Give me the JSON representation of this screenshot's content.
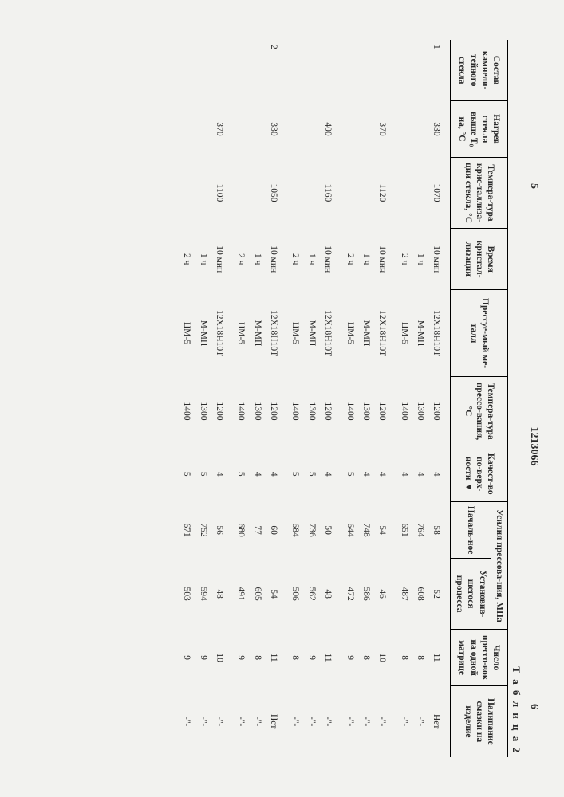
{
  "docNumber": "1213066",
  "leftPageMark": "5",
  "rightPageMark": "6",
  "tableLabel": "Т а б л и ц а  2",
  "headers": {
    "c1": "Состав камнели-тейного стекла",
    "c2": "Нагрев стекла выше Т₀ на, °С",
    "c3": "Темпера-тура крис-таллиза-ции стекла, °С",
    "c4": "Время кристал-лизации",
    "c5": "Прессуе-мый ме-талл",
    "c6": "Темпера-тура прессо-вания, °С",
    "c7": "Качест-во по-верх-ности ▼",
    "c8": "Усилия прессова-ния, МПа",
    "c8a": "Началь-ное",
    "c8b": "Установив-шегося процесса",
    "c9": "Число прессо-вок на одной матрице",
    "c10": "Налипание смазки на изделие"
  },
  "rows": [
    {
      "grp": "1",
      "c1": "1",
      "c2": "330",
      "c3": "1070",
      "c4": "10 мин",
      "c5": "12Х18Н10Т",
      "c6": "1200",
      "c7": "4",
      "c8a": "58",
      "c8b": "52",
      "c9": "11",
      "c10": "Нет"
    },
    {
      "grp": "",
      "c1": "",
      "c2": "",
      "c3": "",
      "c4": "1 ч",
      "c5": "М-МП",
      "c6": "1300",
      "c7": "4",
      "c8a": "764",
      "c8b": "608",
      "c9": "8",
      "c10": "-\"-"
    },
    {
      "grp": "",
      "c1": "",
      "c2": "",
      "c3": "",
      "c4": "2 ч",
      "c5": "ЦМ-5",
      "c6": "1400",
      "c7": "4",
      "c8a": "651",
      "c8b": "487",
      "c9": "8",
      "c10": "-\"-"
    },
    {
      "grp": "1",
      "c1": "",
      "c2": "370",
      "c3": "1120",
      "c4": "10 мин",
      "c5": "12Х18Н10Т",
      "c6": "1200",
      "c7": "4",
      "c8a": "54",
      "c8b": "46",
      "c9": "10",
      "c10": "-\"-"
    },
    {
      "grp": "",
      "c1": "",
      "c2": "",
      "c3": "",
      "c4": "1 ч",
      "c5": "М-МП",
      "c6": "1300",
      "c7": "4",
      "c8a": "748",
      "c8b": "586",
      "c9": "8",
      "c10": "-\"-"
    },
    {
      "grp": "",
      "c1": "",
      "c2": "",
      "c3": "",
      "c4": "2 ч",
      "c5": "ЦМ-5",
      "c6": "1400",
      "c7": "5",
      "c8a": "644",
      "c8b": "472",
      "c9": "9",
      "c10": "-\"-"
    },
    {
      "grp": "1",
      "c1": "",
      "c2": "400",
      "c3": "1160",
      "c4": "10 мин",
      "c5": "12Х18Н10Т",
      "c6": "1200",
      "c7": "4",
      "c8a": "50",
      "c8b": "48",
      "c9": "11",
      "c10": "-\"-"
    },
    {
      "grp": "",
      "c1": "",
      "c2": "",
      "c3": "",
      "c4": "1 ч",
      "c5": "М-МП",
      "c6": "1300",
      "c7": "5",
      "c8a": "736",
      "c8b": "562",
      "c9": "9",
      "c10": "-\"-"
    },
    {
      "grp": "",
      "c1": "",
      "c2": "",
      "c3": "",
      "c4": "2 ч",
      "c5": "ЦМ-5",
      "c6": "1400",
      "c7": "5",
      "c8a": "684",
      "c8b": "506",
      "c9": "8",
      "c10": "-\"-"
    },
    {
      "grp": "1",
      "c1": "2",
      "c2": "330",
      "c3": "1050",
      "c4": "10 мин",
      "c5": "12Х18Н10Т",
      "c6": "1200",
      "c7": "4",
      "c8a": "60",
      "c8b": "54",
      "c9": "11",
      "c10": "Нет"
    },
    {
      "grp": "",
      "c1": "",
      "c2": "",
      "c3": "",
      "c4": "1 ч",
      "c5": "М-МП",
      "c6": "1300",
      "c7": "4",
      "c8a": "77",
      "c8b": "605",
      "c9": "8",
      "c10": "-\"-"
    },
    {
      "grp": "",
      "c1": "",
      "c2": "",
      "c3": "",
      "c4": "2 ч",
      "c5": "ЦМ-5",
      "c6": "1400",
      "c7": "5",
      "c8a": "680",
      "c8b": "491",
      "c9": "9",
      "c10": "-\"-"
    },
    {
      "grp": "1",
      "c1": "",
      "c2": "370",
      "c3": "1100",
      "c4": "10 мин",
      "c5": "12Х18Н10Т",
      "c6": "1200",
      "c7": "4",
      "c8a": "56",
      "c8b": "48",
      "c9": "10",
      "c10": "-\"-"
    },
    {
      "grp": "",
      "c1": "",
      "c2": "",
      "c3": "",
      "c4": "1 ч",
      "c5": "М-МП",
      "c6": "1300",
      "c7": "5",
      "c8a": "752",
      "c8b": "594",
      "c9": "9",
      "c10": "-\"-"
    },
    {
      "grp": "",
      "c1": "",
      "c2": "",
      "c3": "",
      "c4": "2 ч",
      "c5": "ЦМ-5",
      "c6": "1400",
      "c7": "5",
      "c8a": "671",
      "c8b": "503",
      "c9": "9",
      "c10": "-\"-"
    }
  ],
  "colWidths": [
    "60",
    "55",
    "70",
    "60",
    "85",
    "68",
    "55",
    "55",
    "70",
    "55",
    "70"
  ]
}
